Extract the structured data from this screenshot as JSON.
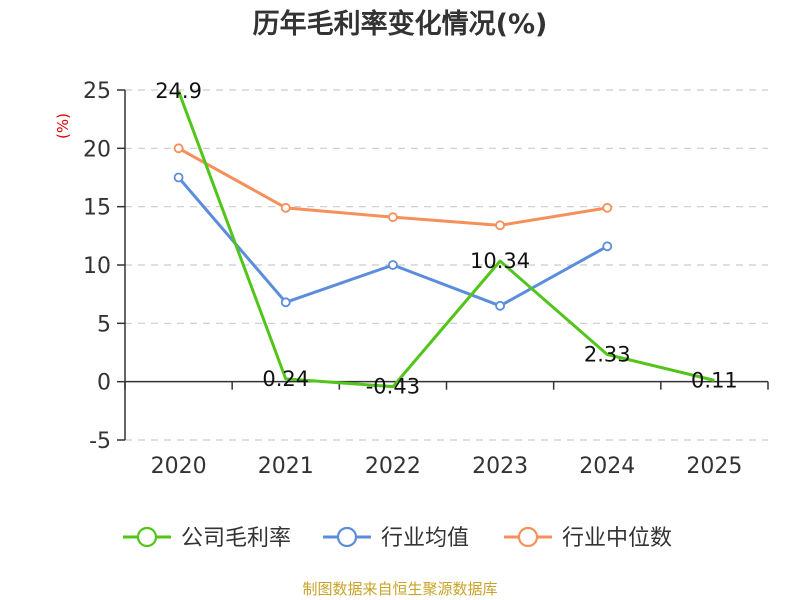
{
  "chart_data": {
    "type": "line",
    "title": "历年毛利率变化情况(%)",
    "ylabel": "(%)",
    "xlabel": "",
    "categories": [
      "2020",
      "2021",
      "2022",
      "2023",
      "2024",
      "2025"
    ],
    "ylim": [
      -5,
      25
    ],
    "yticks": [
      -5,
      0,
      5,
      10,
      15,
      20,
      25
    ],
    "grid": true,
    "legend_position": "bottom",
    "series": [
      {
        "name": "公司毛利率",
        "color": "#52c41a",
        "values": [
          24.9,
          0.24,
          -0.43,
          10.34,
          2.33,
          0.11
        ],
        "show_labels": true
      },
      {
        "name": "行业均值",
        "color": "#5b8ddc",
        "values": [
          17.5,
          6.8,
          10.0,
          6.5,
          11.6,
          null
        ],
        "show_labels": false
      },
      {
        "name": "行业中位数",
        "color": "#f5905a",
        "values": [
          20.0,
          14.9,
          14.1,
          13.4,
          14.9,
          null
        ],
        "show_labels": false
      }
    ],
    "source": "制图数据来自恒生聚源数据库"
  }
}
